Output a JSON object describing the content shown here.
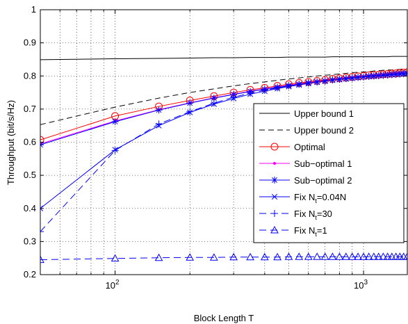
{
  "chart_data": {
    "type": "line",
    "xlabel": "Block Length T",
    "ylabel": "Throughput (bit/s/Hz)",
    "xscale": "log",
    "xlim": [
      50,
      1500
    ],
    "ylim": [
      0.2,
      1.0
    ],
    "grid": true,
    "legend_position": "center-right",
    "yticks": [
      0.2,
      0.3,
      0.4,
      0.5,
      0.6,
      0.7,
      0.8,
      0.9,
      1.0
    ],
    "ytick_labels": [
      "0.2",
      "0.3",
      "0.4",
      "0.5",
      "0.6",
      "0.7",
      "0.8",
      "0.9",
      "1"
    ],
    "xticks": [
      {
        "value": 100,
        "base": "10",
        "exp": "2"
      },
      {
        "value": 1000,
        "base": "10",
        "exp": "3"
      }
    ],
    "x": [
      50,
      100,
      150,
      200,
      250,
      300,
      350,
      400,
      450,
      500,
      550,
      600,
      650,
      700,
      750,
      800,
      850,
      900,
      950,
      1000,
      1050,
      1100,
      1150,
      1200,
      1250,
      1300,
      1350,
      1400,
      1450,
      1500
    ],
    "series": [
      {
        "name": "Upper bound 1",
        "name_base": "Upper bound 1",
        "name_sub": "",
        "name_tail": "",
        "color": "#000000",
        "dash": "",
        "marker": "none",
        "values": [
          0.849,
          0.852,
          0.853,
          0.854,
          0.855,
          0.855,
          0.856,
          0.856,
          0.856,
          0.857,
          0.857,
          0.857,
          0.857,
          0.857,
          0.858,
          0.858,
          0.858,
          0.858,
          0.858,
          0.858,
          0.858,
          0.858,
          0.858,
          0.858,
          0.858,
          0.859,
          0.859,
          0.859,
          0.859,
          0.859
        ]
      },
      {
        "name": "Upper bound 2",
        "name_base": "Upper bound 2",
        "name_sub": "",
        "name_tail": "",
        "color": "#000000",
        "dash": "8,5",
        "marker": "none",
        "values": [
          0.653,
          0.706,
          0.733,
          0.75,
          0.761,
          0.77,
          0.777,
          0.782,
          0.787,
          0.791,
          0.794,
          0.797,
          0.8,
          0.802,
          0.804,
          0.806,
          0.808,
          0.81,
          0.811,
          0.812,
          0.813,
          0.815,
          0.816,
          0.817,
          0.818,
          0.818,
          0.819,
          0.82,
          0.821,
          0.821
        ]
      },
      {
        "name": "Optimal",
        "name_base": "Optimal",
        "name_sub": "",
        "name_tail": "",
        "color": "#ff0000",
        "dash": "",
        "marker": "circle",
        "values": [
          0.607,
          0.679,
          0.708,
          0.726,
          0.739,
          0.75,
          0.758,
          0.764,
          0.77,
          0.775,
          0.779,
          0.782,
          0.785,
          0.788,
          0.791,
          0.793,
          0.795,
          0.797,
          0.799,
          0.8,
          0.802,
          0.803,
          0.804,
          0.805,
          0.806,
          0.807,
          0.808,
          0.809,
          0.81,
          0.811
        ]
      },
      {
        "name": "Sub-optimal 1",
        "name_base": "Sub−optimal 1",
        "name_sub": "",
        "name_tail": "",
        "color": "#ff00ff",
        "dash": "",
        "marker": "dot",
        "values": [
          0.595,
          0.664,
          0.698,
          0.719,
          0.734,
          0.745,
          0.754,
          0.761,
          0.767,
          0.772,
          0.776,
          0.78,
          0.783,
          0.786,
          0.789,
          0.791,
          0.793,
          0.795,
          0.797,
          0.798,
          0.8,
          0.801,
          0.802,
          0.803,
          0.804,
          0.805,
          0.806,
          0.807,
          0.808,
          0.809
        ]
      },
      {
        "name": "Sub-optimal 2",
        "name_base": "Sub−optimal 2",
        "name_sub": "",
        "name_tail": "",
        "color": "#0000ff",
        "dash": "",
        "marker": "asterisk",
        "values": [
          0.592,
          0.662,
          0.697,
          0.718,
          0.733,
          0.744,
          0.753,
          0.76,
          0.766,
          0.771,
          0.775,
          0.779,
          0.782,
          0.785,
          0.788,
          0.79,
          0.792,
          0.794,
          0.796,
          0.797,
          0.799,
          0.8,
          0.801,
          0.802,
          0.803,
          0.804,
          0.805,
          0.806,
          0.807,
          0.808
        ]
      },
      {
        "name": "Fix Nt=0.04N",
        "name_base": "Fix N",
        "name_sub": "t",
        "name_tail": "=0.04N",
        "color": "#0000ff",
        "dash": "",
        "marker": "x",
        "values": [
          0.4,
          0.577,
          0.65,
          0.69,
          0.715,
          0.732,
          0.745,
          0.754,
          0.762,
          0.768,
          0.773,
          0.777,
          0.781,
          0.784,
          0.787,
          0.789,
          0.791,
          0.793,
          0.795,
          0.797,
          0.798,
          0.799,
          0.801,
          0.802,
          0.803,
          0.804,
          0.805,
          0.806,
          0.806,
          0.807
        ]
      },
      {
        "name": "Fix Nt=30",
        "name_base": "Fix N",
        "name_sub": "t",
        "name_tail": "=30",
        "color": "#0000ff",
        "dash": "10,6",
        "marker": "plus",
        "values": [
          0.33,
          0.575,
          0.655,
          0.692,
          0.718,
          0.736,
          0.748,
          0.757,
          0.764,
          0.77,
          0.775,
          0.779,
          0.782,
          0.785,
          0.788,
          0.79,
          0.792,
          0.794,
          0.796,
          0.797,
          0.799,
          0.8,
          0.801,
          0.802,
          0.803,
          0.804,
          0.805,
          0.806,
          0.807,
          0.808
        ]
      },
      {
        "name": "Fix Nt=1",
        "name_base": "Fix N",
        "name_sub": "t",
        "name_tail": "=1",
        "color": "#0000ff",
        "dash": "10,6",
        "marker": "triangle",
        "values": [
          0.245,
          0.249,
          0.251,
          0.252,
          0.252,
          0.253,
          0.253,
          0.253,
          0.253,
          0.254,
          0.254,
          0.254,
          0.254,
          0.254,
          0.254,
          0.254,
          0.254,
          0.254,
          0.254,
          0.254,
          0.254,
          0.254,
          0.254,
          0.254,
          0.254,
          0.254,
          0.254,
          0.254,
          0.254,
          0.254
        ]
      }
    ]
  }
}
